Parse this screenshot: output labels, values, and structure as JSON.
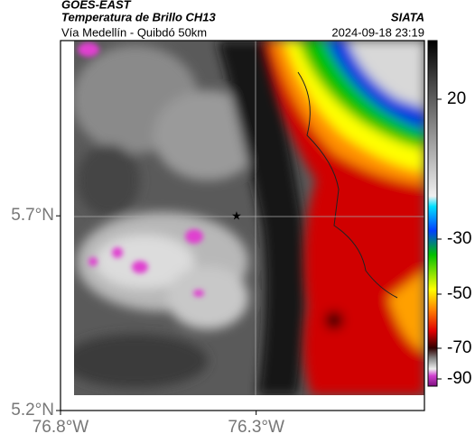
{
  "header": {
    "title": "GOES-EAST",
    "subtitle": "Temperatura de Brillo CH13",
    "source": "SIATA",
    "route": "Vía Medellín - Quibdó 50km",
    "timestamp": "2024-09-18 23:19"
  },
  "map": {
    "lonlim": [
      -76.8,
      -75.87
    ],
    "latlim": [
      5.2,
      6.15
    ],
    "lon_ticks": [
      {
        "value": -76.8,
        "label": "76.8°W"
      },
      {
        "value": -76.3,
        "label": "76.3°W"
      }
    ],
    "lat_ticks": [
      {
        "value": 5.7,
        "label": "5.7°N"
      },
      {
        "value": 5.2,
        "label": "5.2°N"
      }
    ]
  },
  "colorbar": {
    "ticks": [
      20,
      -30,
      -50,
      -70,
      -90
    ]
  }
}
